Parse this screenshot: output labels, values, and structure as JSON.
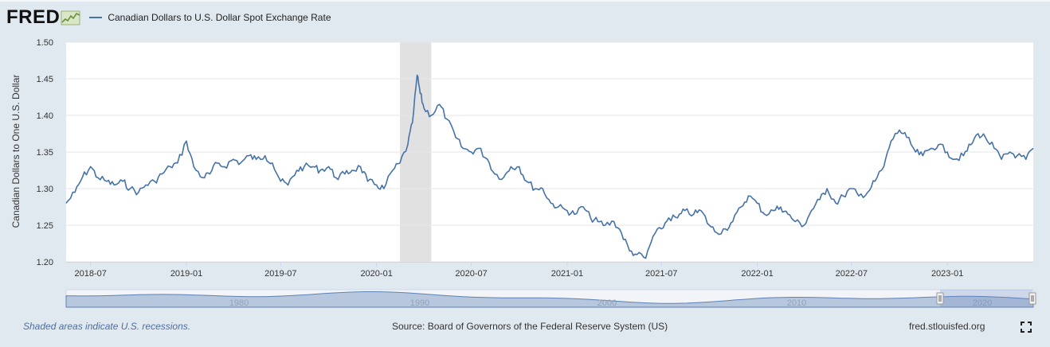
{
  "header": {
    "logo_text": "FRED",
    "logo_icon": "fred-graph-icon",
    "legend_label": "Canadian Dollars to U.S. Dollar Spot Exchange Rate"
  },
  "colors": {
    "series": "#4572a7",
    "recession": "#e1e1e1",
    "navigator_fill": "#b7c7dd",
    "navigator_line": "#5e82b4"
  },
  "chart_data": {
    "type": "line",
    "title": "Canadian Dollars to U.S. Dollar Spot Exchange Rate",
    "xlabel": "",
    "ylabel": "Canadian Dollars to One U.S. Dollar",
    "ylim": [
      1.2,
      1.5
    ],
    "xlim": [
      "2018-05-15",
      "2023-06-15"
    ],
    "y_ticks": [
      "1.20",
      "1.25",
      "1.30",
      "1.35",
      "1.40",
      "1.45",
      "1.50"
    ],
    "y_tick_values": [
      1.2,
      1.25,
      1.3,
      1.35,
      1.4,
      1.45,
      1.5
    ],
    "x_ticks": [
      "2018-07",
      "2019-01",
      "2019-07",
      "2020-01",
      "2020-07",
      "2021-01",
      "2021-07",
      "2022-01",
      "2022-07",
      "2023-01"
    ],
    "recessions": [
      {
        "start": "2020-02-15",
        "end": "2020-04-15"
      }
    ],
    "series": [
      {
        "name": "Canadian Dollars to U.S. Dollar Spot Exchange Rate",
        "x": [
          "2018-05-15",
          "2018-06-01",
          "2018-06-15",
          "2018-07-01",
          "2018-07-15",
          "2018-08-01",
          "2018-08-15",
          "2018-09-01",
          "2018-09-15",
          "2018-10-01",
          "2018-10-15",
          "2018-11-01",
          "2018-11-15",
          "2018-12-01",
          "2018-12-15",
          "2019-01-01",
          "2019-01-15",
          "2019-02-01",
          "2019-02-15",
          "2019-03-01",
          "2019-03-15",
          "2019-04-01",
          "2019-04-15",
          "2019-05-01",
          "2019-05-15",
          "2019-06-01",
          "2019-06-15",
          "2019-07-01",
          "2019-07-15",
          "2019-08-01",
          "2019-08-15",
          "2019-09-01",
          "2019-09-15",
          "2019-10-01",
          "2019-10-15",
          "2019-11-01",
          "2019-11-15",
          "2019-12-01",
          "2019-12-15",
          "2020-01-01",
          "2020-01-15",
          "2020-02-01",
          "2020-02-15",
          "2020-03-01",
          "2020-03-10",
          "2020-03-19",
          "2020-03-25",
          "2020-04-01",
          "2020-04-15",
          "2020-05-01",
          "2020-05-15",
          "2020-06-01",
          "2020-06-15",
          "2020-07-01",
          "2020-07-15",
          "2020-08-01",
          "2020-08-15",
          "2020-09-01",
          "2020-09-15",
          "2020-10-01",
          "2020-10-15",
          "2020-11-01",
          "2020-11-15",
          "2020-12-01",
          "2020-12-15",
          "2021-01-01",
          "2021-01-15",
          "2021-02-01",
          "2021-02-15",
          "2021-03-01",
          "2021-03-15",
          "2021-04-01",
          "2021-04-15",
          "2021-05-01",
          "2021-05-15",
          "2021-06-01",
          "2021-06-15",
          "2021-07-01",
          "2021-07-15",
          "2021-08-01",
          "2021-08-15",
          "2021-09-01",
          "2021-09-15",
          "2021-10-01",
          "2021-10-15",
          "2021-11-01",
          "2021-11-15",
          "2021-12-01",
          "2021-12-15",
          "2022-01-01",
          "2022-01-15",
          "2022-02-01",
          "2022-02-15",
          "2022-03-01",
          "2022-03-15",
          "2022-04-01",
          "2022-04-15",
          "2022-05-01",
          "2022-05-15",
          "2022-06-01",
          "2022-06-15",
          "2022-07-01",
          "2022-07-15",
          "2022-08-01",
          "2022-08-15",
          "2022-09-01",
          "2022-09-15",
          "2022-10-01",
          "2022-10-15",
          "2022-11-01",
          "2022-11-15",
          "2022-12-01",
          "2022-12-15",
          "2023-01-01",
          "2023-01-15",
          "2023-02-01",
          "2023-02-15",
          "2023-03-01",
          "2023-03-15",
          "2023-04-01",
          "2023-04-15",
          "2023-05-01",
          "2023-05-15",
          "2023-06-01",
          "2023-06-15"
        ],
        "values": [
          1.28,
          1.295,
          1.315,
          1.33,
          1.315,
          1.31,
          1.305,
          1.31,
          1.3,
          1.295,
          1.305,
          1.31,
          1.32,
          1.33,
          1.335,
          1.365,
          1.33,
          1.315,
          1.32,
          1.335,
          1.33,
          1.34,
          1.335,
          1.345,
          1.34,
          1.345,
          1.335,
          1.31,
          1.305,
          1.325,
          1.33,
          1.33,
          1.325,
          1.33,
          1.315,
          1.32,
          1.325,
          1.33,
          1.31,
          1.305,
          1.3,
          1.325,
          1.335,
          1.36,
          1.39,
          1.455,
          1.43,
          1.41,
          1.4,
          1.415,
          1.395,
          1.37,
          1.355,
          1.35,
          1.355,
          1.34,
          1.32,
          1.315,
          1.33,
          1.33,
          1.31,
          1.3,
          1.3,
          1.28,
          1.275,
          1.27,
          1.265,
          1.275,
          1.26,
          1.255,
          1.25,
          1.255,
          1.24,
          1.215,
          1.21,
          1.205,
          1.235,
          1.245,
          1.26,
          1.26,
          1.27,
          1.265,
          1.27,
          1.25,
          1.24,
          1.245,
          1.255,
          1.275,
          1.29,
          1.28,
          1.265,
          1.27,
          1.275,
          1.265,
          1.255,
          1.25,
          1.27,
          1.285,
          1.3,
          1.28,
          1.29,
          1.3,
          1.29,
          1.295,
          1.31,
          1.33,
          1.365,
          1.38,
          1.37,
          1.35,
          1.345,
          1.355,
          1.36,
          1.35,
          1.34,
          1.345,
          1.36,
          1.375,
          1.37,
          1.355,
          1.34,
          1.35,
          1.345,
          1.34,
          1.355
        ]
      }
    ],
    "navigator": {
      "tick_labels": [
        "1980",
        "1990",
        "2000",
        "2010",
        "2020"
      ],
      "range": "2018-05 to 2023-06"
    }
  },
  "footer": {
    "recession_note": "Shaded areas indicate U.S. recessions.",
    "source": "Source: Board of Governors of the Federal Reserve System (US)",
    "url": "fred.stlouisfed.org",
    "fullscreen_icon": "fullscreen-icon"
  }
}
